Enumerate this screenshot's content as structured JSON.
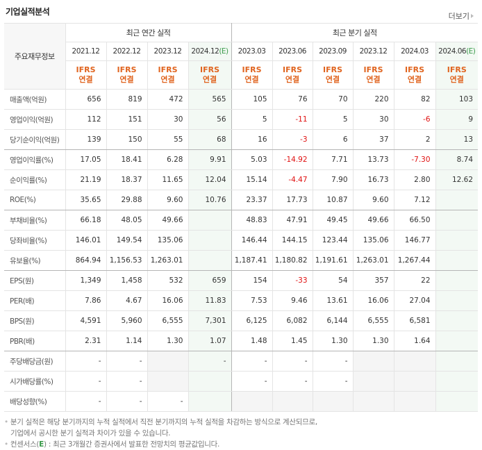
{
  "header": {
    "title": "기업실적분석",
    "more_label": "더보기"
  },
  "table": {
    "corner_label": "주요재무정보",
    "groups": [
      {
        "label": "최근 연간 실적",
        "span": 4
      },
      {
        "label": "최근 분기 실적",
        "span": 6
      }
    ],
    "periods": [
      {
        "label": "2021.12",
        "estimate": false
      },
      {
        "label": "2022.12",
        "estimate": false
      },
      {
        "label": "2023.12",
        "estimate": false
      },
      {
        "label": "2024.12",
        "estimate": true
      },
      {
        "label": "2023.03",
        "estimate": false
      },
      {
        "label": "2023.06",
        "estimate": false
      },
      {
        "label": "2023.09",
        "estimate": false
      },
      {
        "label": "2023.12",
        "estimate": false
      },
      {
        "label": "2024.03",
        "estimate": false
      },
      {
        "label": "2024.06",
        "estimate": true
      }
    ],
    "estimate_mark": "(E)",
    "ifrs_line1": "IFRS",
    "ifrs_line2": "연결",
    "rows": [
      {
        "label": "매출액(억원)",
        "values": [
          "656",
          "819",
          "472",
          "565",
          "105",
          "76",
          "70",
          "220",
          "82",
          "103"
        ]
      },
      {
        "label": "영업이익(억원)",
        "values": [
          "112",
          "151",
          "30",
          "56",
          "5",
          "-11",
          "5",
          "30",
          "-6",
          "9"
        ]
      },
      {
        "label": "당기순이익(억원)",
        "values": [
          "139",
          "150",
          "55",
          "68",
          "16",
          "-3",
          "6",
          "37",
          "2",
          "13"
        ],
        "group_end": true
      },
      {
        "label": "영업이익률(%)",
        "values": [
          "17.05",
          "18.41",
          "6.28",
          "9.91",
          "5.03",
          "-14.92",
          "7.71",
          "13.73",
          "-7.30",
          "8.74"
        ]
      },
      {
        "label": "순이익률(%)",
        "values": [
          "21.19",
          "18.37",
          "11.65",
          "12.04",
          "15.14",
          "-4.47",
          "7.90",
          "16.73",
          "2.80",
          "12.62"
        ]
      },
      {
        "label": "ROE(%)",
        "values": [
          "35.65",
          "29.88",
          "9.60",
          "10.76",
          "23.37",
          "17.73",
          "10.87",
          "9.60",
          "7.12",
          ""
        ],
        "group_end": true
      },
      {
        "label": "부채비율(%)",
        "values": [
          "66.18",
          "48.05",
          "49.66",
          "",
          "48.83",
          "47.91",
          "49.45",
          "49.66",
          "66.50",
          ""
        ]
      },
      {
        "label": "당좌비율(%)",
        "values": [
          "146.01",
          "149.54",
          "135.06",
          "",
          "146.44",
          "144.15",
          "123.44",
          "135.06",
          "146.77",
          ""
        ]
      },
      {
        "label": "유보율(%)",
        "values": [
          "864.94",
          "1,156.53",
          "1,263.01",
          "",
          "1,187.41",
          "1,180.82",
          "1,191.61",
          "1,263.01",
          "1,267.44",
          ""
        ],
        "group_end": true
      },
      {
        "label": "EPS(원)",
        "values": [
          "1,349",
          "1,458",
          "532",
          "659",
          "154",
          "-33",
          "54",
          "357",
          "22",
          ""
        ]
      },
      {
        "label": "PER(배)",
        "values": [
          "7.86",
          "4.67",
          "16.06",
          "11.83",
          "7.53",
          "9.46",
          "13.61",
          "16.06",
          "27.04",
          ""
        ]
      },
      {
        "label": "BPS(원)",
        "values": [
          "4,591",
          "5,960",
          "6,555",
          "7,301",
          "6,125",
          "6,082",
          "6,144",
          "6,555",
          "6,581",
          ""
        ]
      },
      {
        "label": "PBR(배)",
        "values": [
          "2.31",
          "1.14",
          "1.30",
          "1.07",
          "1.48",
          "1.45",
          "1.30",
          "1.30",
          "1.64",
          ""
        ],
        "group_end": true
      },
      {
        "label": "주당배당금(원)",
        "values": [
          "-",
          "-",
          null,
          "-",
          "-",
          "-",
          "-",
          null,
          null,
          null
        ]
      },
      {
        "label": "시가배당률(%)",
        "values": [
          "-",
          "-",
          null,
          null,
          "-",
          "-",
          "-",
          null,
          null,
          null
        ]
      },
      {
        "label": "배당성향(%)",
        "values": [
          "-",
          "-",
          "-",
          null,
          null,
          null,
          null,
          null,
          null,
          null
        ]
      }
    ]
  },
  "notes": {
    "line1": "분기 실적은 해당 분기까지의 누적 실적에서 직전 분기까지의 누적 실적을 차감하는 방식으로 계산되므로,",
    "line2": "기업에서 공시한 분기 실적과 차이가 있을 수 있습니다.",
    "line3_prefix": "컨센서스(",
    "line3_mark": "E",
    "line3_suffix": ") : 최근 3개월간 증권사에서 발표한 전망치의 평균값입니다."
  },
  "colors": {
    "ifrs": "#e0641f",
    "negative": "#e01010",
    "estimate": "#3a9a4a",
    "estimate_bg": "#f3f9f4",
    "na_bg": "#f5f5f5"
  }
}
